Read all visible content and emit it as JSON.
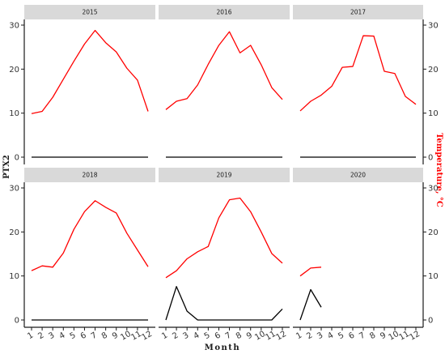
{
  "chart_data": {
    "type": "line",
    "facet_titles": [
      "2015",
      "2016",
      "2017",
      "2018",
      "2019",
      "2020"
    ],
    "xlabel": "Month",
    "ylabel_left": "PTX2",
    "ylabel_right": "Temperature, °C",
    "x_ticks": [
      1,
      2,
      3,
      4,
      5,
      6,
      7,
      8,
      9,
      10,
      11,
      12
    ],
    "y_ticks": [
      0,
      10,
      20,
      30
    ],
    "xlim": [
      1,
      12
    ],
    "ylim": [
      0,
      30
    ],
    "grid": false,
    "colors": {
      "temperature": "#ff0000",
      "ptx2": "#000000",
      "strip": "#d9d9d9"
    },
    "facets": [
      {
        "title": "2015",
        "ptx2": [
          0,
          0,
          0,
          0,
          0,
          0,
          0,
          0,
          0,
          0,
          0,
          0
        ],
        "temperature": [
          9.9,
          10.4,
          13.6,
          17.7,
          21.8,
          25.7,
          28.8,
          26.0,
          23.9,
          20.2,
          17.5,
          10.4
        ]
      },
      {
        "title": "2016",
        "ptx2": [
          0,
          0,
          0,
          0,
          0,
          0,
          0,
          0,
          0,
          0,
          0,
          0
        ],
        "temperature": [
          10.8,
          12.7,
          13.3,
          16.4,
          21.1,
          25.4,
          28.5,
          23.7,
          25.4,
          21.0,
          15.8,
          13.1
        ]
      },
      {
        "title": "2017",
        "ptx2": [
          0,
          0,
          0,
          0,
          0,
          0,
          0,
          0,
          0,
          0,
          0,
          0
        ],
        "temperature": [
          10.5,
          12.7,
          14.1,
          16.1,
          20.4,
          20.6,
          27.6,
          27.5,
          19.5,
          19.0,
          13.8,
          12.0
        ]
      },
      {
        "title": "2018",
        "ptx2": [
          0,
          0,
          0,
          0,
          0,
          0,
          0,
          0,
          0,
          0,
          0,
          0
        ],
        "temperature": [
          11.2,
          12.3,
          12.0,
          15.2,
          20.6,
          24.6,
          27.1,
          25.6,
          24.3,
          19.7,
          15.9,
          12.1
        ]
      },
      {
        "title": "2019",
        "ptx2": [
          0,
          7.6,
          2.0,
          0,
          0,
          0,
          0,
          0,
          0,
          0,
          0,
          2.5
        ],
        "temperature": [
          9.6,
          11.2,
          13.9,
          15.5,
          16.7,
          23.2,
          27.3,
          27.7,
          24.6,
          20.0,
          15.1,
          12.9
        ]
      },
      {
        "title": "2020",
        "ptx2": [
          0,
          6.9,
          2.9
        ],
        "temperature": [
          10.0,
          11.8,
          12.0
        ]
      }
    ]
  }
}
